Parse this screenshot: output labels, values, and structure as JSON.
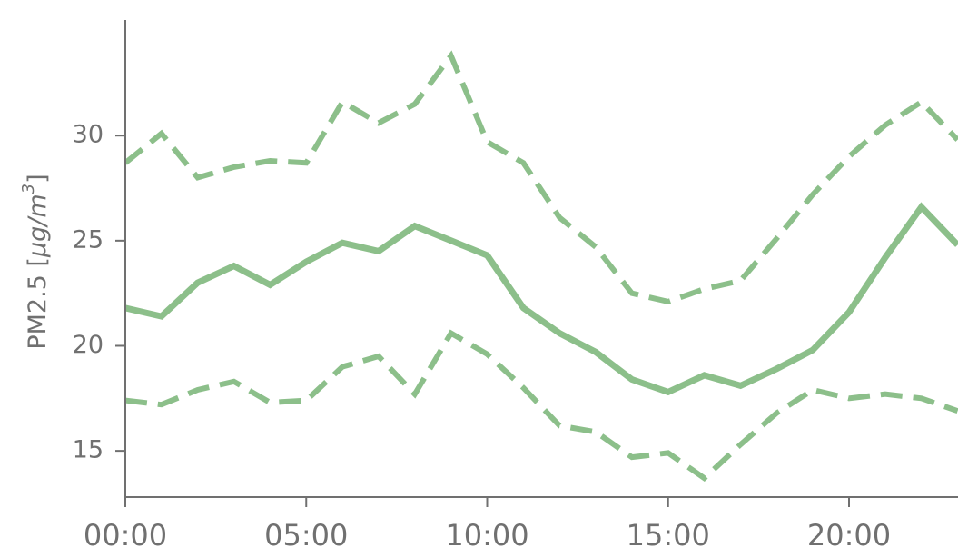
{
  "chart_data": {
    "type": "line",
    "ylabel": {
      "prefix": "PM2.5 [",
      "unit": "μg/m",
      "superscript": "3",
      "suffix": "]"
    },
    "xlabel": "",
    "title": "",
    "x": [
      "00:00",
      "01:00",
      "02:00",
      "03:00",
      "04:00",
      "05:00",
      "06:00",
      "07:00",
      "08:00",
      "09:00",
      "10:00",
      "11:00",
      "12:00",
      "13:00",
      "14:00",
      "15:00",
      "16:00",
      "17:00",
      "18:00",
      "19:00",
      "20:00",
      "21:00",
      "22:00",
      "23:00"
    ],
    "x_ticks": [
      "00:00",
      "05:00",
      "10:00",
      "15:00",
      "20:00"
    ],
    "y_ticks": [
      15,
      20,
      25,
      30
    ],
    "ylim": [
      12.8,
      35.5
    ],
    "xlim": [
      0,
      23
    ],
    "grid": false,
    "color": "#8cbf8a",
    "series": [
      {
        "style": "dashed",
        "values": [
          28.7,
          30.1,
          28.0,
          28.5,
          28.8,
          28.7,
          31.6,
          30.6,
          31.5,
          33.8,
          29.7,
          28.7,
          26.1,
          24.7,
          22.5,
          22.1,
          22.7,
          23.1,
          25.1,
          27.2,
          29.0,
          30.5,
          31.6,
          29.8
        ]
      },
      {
        "style": "solid",
        "values": [
          21.8,
          21.4,
          23.0,
          23.8,
          22.9,
          24.0,
          24.9,
          24.5,
          25.7,
          25.0,
          24.3,
          21.8,
          20.6,
          19.7,
          18.4,
          17.8,
          18.6,
          18.1,
          18.9,
          19.8,
          21.6,
          24.2,
          26.6,
          24.8
        ]
      },
      {
        "style": "dashed",
        "values": [
          17.4,
          17.2,
          17.9,
          18.3,
          17.3,
          17.4,
          19.0,
          19.5,
          17.7,
          20.6,
          19.6,
          18.0,
          16.2,
          15.9,
          14.7,
          14.9,
          13.7,
          15.3,
          16.8,
          17.9,
          17.5,
          17.7,
          17.5,
          16.9
        ]
      }
    ]
  }
}
